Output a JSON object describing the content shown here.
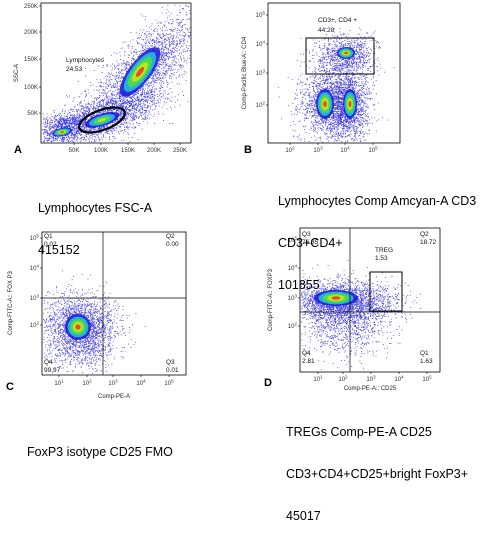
{
  "chart_data": [
    {
      "panel": "A",
      "type": "scatter",
      "xlabel": "",
      "ylabel": "SSC-A",
      "x_ticks": [
        "50K",
        "100K",
        "150K",
        "200K",
        "250K"
      ],
      "y_ticks": [
        "50K",
        "100K",
        "150K",
        "200K",
        "250K"
      ],
      "gates": [
        {
          "name": "Lymphocytes",
          "value": "24.53"
        }
      ],
      "caption": [
        "Lymphocytes FSC-A",
        "415152"
      ]
    },
    {
      "panel": "B",
      "type": "scatter",
      "xlabel": "",
      "ylabel": "Comp-Pacific Blue-A:: CD4",
      "x_ticks": [
        "10^2",
        "10^3",
        "10^4",
        "10^5"
      ],
      "y_ticks": [
        "10^2",
        "10^3",
        "10^4",
        "10^5"
      ],
      "gates": [
        {
          "name": "CD3+, CD4 +",
          "value": "44.28"
        }
      ],
      "caption": [
        "Lymphocytes Comp Amcyan-A CD3",
        "CD3+CD4+",
        "101855"
      ]
    },
    {
      "panel": "C",
      "type": "scatter",
      "xlabel": "Comp-PE-A",
      "ylabel": "Comp-FITC-A:: FOX P3",
      "x_ticks": [
        "10^1",
        "10^2",
        "10^3",
        "10^4",
        "10^5"
      ],
      "y_ticks": [
        "10^2",
        "10^3",
        "10^4",
        "10^5"
      ],
      "quadrants": {
        "Q1": "0.02",
        "Q2": "0.00",
        "Q3": "0.01",
        "Q4": "99.97"
      },
      "caption": [
        "FoxP3 isotype CD25 FMO"
      ]
    },
    {
      "panel": "D",
      "type": "scatter",
      "xlabel": "Comp-PE-A:: CD25",
      "ylabel": "Comp-FITC-A:: FOXP3",
      "x_ticks": [
        "10^1",
        "10^2",
        "10^3",
        "10^4",
        "10^5"
      ],
      "y_ticks": [
        "10^2",
        "10^3",
        "10^4",
        "10^5"
      ],
      "quadrants": {
        "Q1": "1.63",
        "Q2": "18.72",
        "Q3": "76.85",
        "Q4": "2.81"
      },
      "gates": [
        {
          "name": "TREG",
          "value": "1.53"
        }
      ],
      "caption": [
        "TREGs Comp-PE-A CD25",
        "CD3+CD4+CD25+bright FoxP3+",
        "45017"
      ]
    }
  ],
  "colors": {
    "low": "#1a14d8",
    "mid": "#22c9d4",
    "midhigh": "#52e03a",
    "high": "#ff2a1a"
  }
}
